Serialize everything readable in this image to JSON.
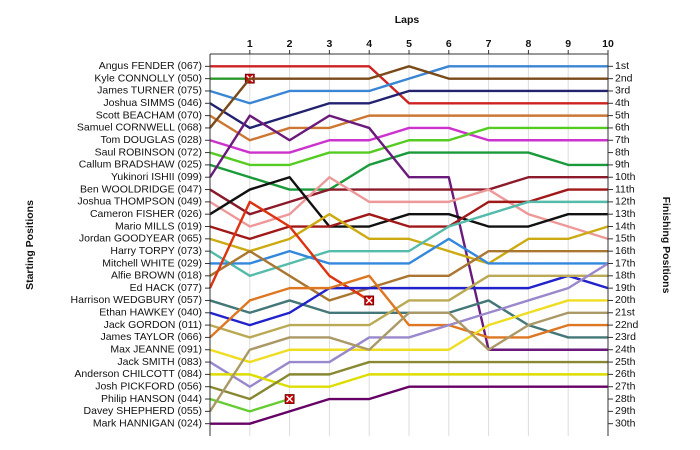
{
  "chart_data": {
    "type": "line",
    "x_label": "Laps",
    "y_label": "Starting Positions",
    "y2_label": "Finishing Positions",
    "x": [
      0,
      1,
      2,
      3,
      4,
      5,
      6,
      7,
      8,
      9,
      10
    ],
    "xlim": [
      0,
      10
    ],
    "xticks": [
      1,
      2,
      3,
      4,
      5,
      6,
      7,
      8,
      9,
      10
    ],
    "ylim": [
      31,
      0
    ],
    "yticks": [
      {
        "value": 1,
        "label": "1st"
      },
      {
        "value": 2,
        "label": "2nd"
      },
      {
        "value": 3,
        "label": "3rd"
      },
      {
        "value": 4,
        "label": "4th"
      },
      {
        "value": 5,
        "label": "5th"
      },
      {
        "value": 6,
        "label": "6th"
      },
      {
        "value": 7,
        "label": "7th"
      },
      {
        "value": 8,
        "label": "8th"
      },
      {
        "value": 9,
        "label": "9th"
      },
      {
        "value": 10,
        "label": "10th"
      },
      {
        "value": 11,
        "label": "11th"
      },
      {
        "value": 12,
        "label": "12th"
      },
      {
        "value": 13,
        "label": "13th"
      },
      {
        "value": 14,
        "label": "14th"
      },
      {
        "value": 15,
        "label": "15th"
      },
      {
        "value": 16,
        "label": "16th"
      },
      {
        "value": 17,
        "label": "17th"
      },
      {
        "value": 18,
        "label": "18th"
      },
      {
        "value": 19,
        "label": "19th"
      },
      {
        "value": 20,
        "label": "20th"
      },
      {
        "value": 21,
        "label": "21st"
      },
      {
        "value": 22,
        "label": "22nd"
      },
      {
        "value": 23,
        "label": "23rd"
      },
      {
        "value": 24,
        "label": "24th"
      },
      {
        "value": 25,
        "label": "25th"
      },
      {
        "value": 26,
        "label": "26th"
      },
      {
        "value": 27,
        "label": "27th"
      },
      {
        "value": 28,
        "label": "28th"
      },
      {
        "value": 29,
        "label": "29th"
      },
      {
        "value": 30,
        "label": "30th"
      }
    ],
    "grid": true,
    "series": [
      {
        "name": "Angus FENDER (067)",
        "color": "#cc2222",
        "values": [
          1,
          1,
          1,
          1,
          1,
          4,
          4,
          4,
          4,
          4,
          4
        ]
      },
      {
        "name": "Kyle CONNOLLY (050)",
        "color": "#2a9a2a",
        "values": [
          2,
          2,
          null,
          null,
          null,
          null,
          null,
          null,
          null,
          null,
          null
        ]
      },
      {
        "name": "James TURNER (075)",
        "color": "#3a86d4",
        "values": [
          3,
          4,
          3,
          3,
          3,
          2,
          1,
          1,
          1,
          1,
          1
        ]
      },
      {
        "name": "Joshua SIMMS (046)",
        "color": "#22226e",
        "values": [
          4,
          6,
          5,
          4,
          4,
          3,
          3,
          3,
          3,
          3,
          3
        ]
      },
      {
        "name": "Scott BEACHAM (070)",
        "color": "#cc7733",
        "values": [
          5,
          7,
          6,
          6,
          5,
          5,
          5,
          5,
          5,
          5,
          5
        ]
      },
      {
        "name": "Samuel CORNWELL (068)",
        "color": "#7a4a1a",
        "values": [
          6,
          2,
          2,
          2,
          2,
          1,
          2,
          2,
          2,
          2,
          2
        ]
      },
      {
        "name": "Tom DOUGLAS (028)",
        "color": "#cc33cc",
        "values": [
          7,
          8,
          8,
          7,
          7,
          6,
          6,
          7,
          7,
          7,
          7
        ]
      },
      {
        "name": "Saul ROBINSON (072)",
        "color": "#55cc22",
        "values": [
          8,
          9,
          9,
          8,
          8,
          7,
          7,
          6,
          6,
          6,
          6
        ]
      },
      {
        "name": "Callum BRADSHAW (025)",
        "color": "#1a9a3a",
        "values": [
          9,
          10,
          11,
          11,
          9,
          8,
          8,
          8,
          8,
          9,
          9
        ]
      },
      {
        "name": "Yukinori ISHII (099)",
        "color": "#6a1a7a",
        "values": [
          10,
          5,
          7,
          5,
          6,
          10,
          10,
          24,
          24,
          24,
          24
        ]
      },
      {
        "name": "Ben WOOLDRIDGE (047)",
        "color": "#8b1a2a",
        "values": [
          11,
          13,
          12,
          11,
          11,
          11,
          11,
          11,
          10,
          10,
          10
        ]
      },
      {
        "name": "Joshua THOMPSON (049)",
        "color": "#ee9999",
        "values": [
          12,
          14,
          13,
          10,
          12,
          12,
          12,
          11,
          13,
          14,
          15
        ]
      },
      {
        "name": "Cameron FISHER (026)",
        "color": "#111111",
        "values": [
          13,
          11,
          10,
          14,
          14,
          13,
          13,
          14,
          14,
          13,
          13
        ]
      },
      {
        "name": "Mario MILLS (019)",
        "color": "#a01818",
        "values": [
          14,
          15,
          14,
          14,
          13,
          14,
          14,
          12,
          12,
          11,
          11
        ]
      },
      {
        "name": "Jordan GOODYEAR (065)",
        "color": "#ccaa11",
        "values": [
          15,
          16,
          15,
          13,
          15,
          15,
          16,
          17,
          15,
          15,
          14
        ]
      },
      {
        "name": "Harry TORPY (073)",
        "color": "#55bbaa",
        "values": [
          16,
          18,
          17,
          16,
          16,
          16,
          14,
          13,
          12,
          12,
          12
        ]
      },
      {
        "name": "Mitchell WHITE (029)",
        "color": "#3388dd",
        "values": [
          17,
          17,
          16,
          17,
          17,
          17,
          15,
          17,
          17,
          17,
          17
        ]
      },
      {
        "name": "Alfie BROWN (018)",
        "color": "#aa7733",
        "values": [
          18,
          16,
          18,
          20,
          19,
          18,
          18,
          16,
          16,
          16,
          16
        ]
      },
      {
        "name": "Ed HACK (077)",
        "color": "#dd3311",
        "values": [
          19,
          12,
          14,
          18,
          20,
          null,
          null,
          null,
          null,
          null,
          null
        ]
      },
      {
        "name": "Harrison WEDGBURY (057)",
        "color": "#447777",
        "values": [
          20,
          21,
          20,
          21,
          21,
          21,
          21,
          20,
          22,
          23,
          23
        ]
      },
      {
        "name": "Ethan HAWKEY (040)",
        "color": "#2222cc",
        "values": [
          21,
          22,
          21,
          19,
          19,
          19,
          19,
          19,
          19,
          18,
          19
        ]
      },
      {
        "name": "Jack GORDON (011)",
        "color": "#bbaa55",
        "values": [
          22,
          23,
          22,
          22,
          22,
          20,
          20,
          18,
          18,
          18,
          18
        ]
      },
      {
        "name": "James TAYLOR (066)",
        "color": "#dd7722",
        "values": [
          23,
          20,
          19,
          19,
          18,
          22,
          22,
          23,
          23,
          22,
          22
        ]
      },
      {
        "name": "Max JEANNE (091)",
        "color": "#eedd22",
        "values": [
          24,
          25,
          24,
          24,
          24,
          24,
          24,
          22,
          21,
          20,
          20
        ]
      },
      {
        "name": "Jack SMITH (083)",
        "color": "#9988cc",
        "values": [
          25,
          27,
          25,
          25,
          23,
          23,
          22,
          21,
          20,
          19,
          17
        ]
      },
      {
        "name": "Anderson CHILCOTT (084)",
        "color": "#dddd00",
        "values": [
          26,
          26,
          27,
          27,
          26,
          26,
          26,
          26,
          26,
          26,
          26
        ]
      },
      {
        "name": "Josh PICKFORD (056)",
        "color": "#888833",
        "values": [
          27,
          28,
          26,
          26,
          25,
          25,
          25,
          25,
          25,
          25,
          25
        ]
      },
      {
        "name": "Philip HANSON (044)",
        "color": "#66cc33",
        "values": [
          28,
          29,
          28,
          null,
          null,
          null,
          null,
          null,
          null,
          null,
          null
        ]
      },
      {
        "name": "Davey SHEPHERD (055)",
        "color": "#aa9966",
        "values": [
          29,
          24,
          23,
          23,
          24,
          21,
          21,
          24,
          22,
          21,
          21
        ]
      },
      {
        "name": "Mark HANNIGAN (024)",
        "color": "#660066",
        "values": [
          30,
          30,
          29,
          28,
          28,
          27,
          27,
          27,
          27,
          27,
          27
        ]
      }
    ]
  }
}
